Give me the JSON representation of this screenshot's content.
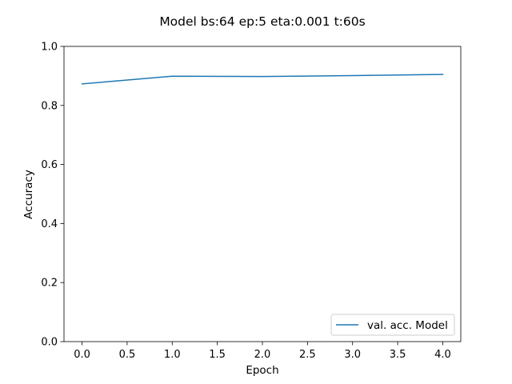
{
  "chart_data": {
    "type": "line",
    "title": "Model bs:64 ep:5 eta:0.001 t:60s",
    "xlabel": "Epoch",
    "ylabel": "Accuracy",
    "xlim": [
      -0.2,
      4.2
    ],
    "ylim": [
      0.0,
      1.0
    ],
    "xticks": [
      "0.0",
      "0.5",
      "1.0",
      "1.5",
      "2.0",
      "2.5",
      "3.0",
      "3.5",
      "4.0"
    ],
    "yticks": [
      "0.0",
      "0.2",
      "0.4",
      "0.6",
      "0.8",
      "1.0"
    ],
    "grid": false,
    "legend_position": "lower-right",
    "series": [
      {
        "name": "val. acc. Model",
        "color": "#1f77b4",
        "x": [
          0,
          1,
          2,
          3,
          4
        ],
        "y": [
          0.873,
          0.899,
          0.898,
          0.901,
          0.905
        ]
      }
    ]
  }
}
